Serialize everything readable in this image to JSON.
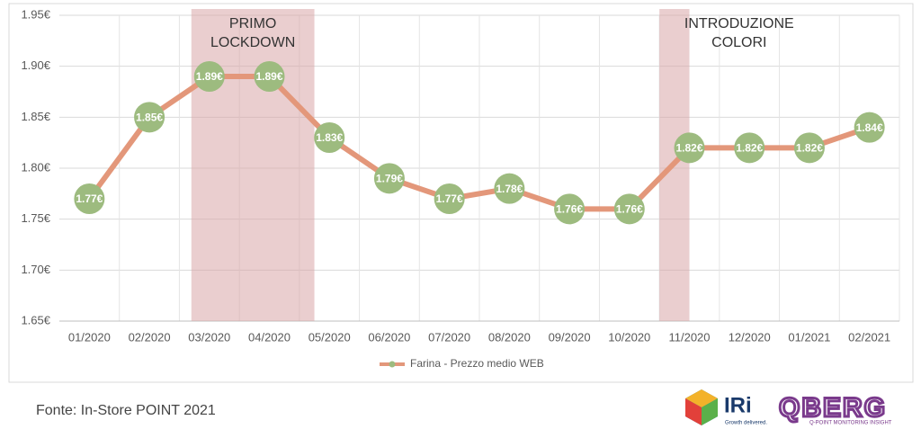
{
  "chart_data": {
    "type": "line",
    "categories": [
      "01/2020",
      "02/2020",
      "03/2020",
      "04/2020",
      "05/2020",
      "06/2020",
      "07/2020",
      "08/2020",
      "09/2020",
      "10/2020",
      "11/2020",
      "12/2020",
      "01/2021",
      "02/2021"
    ],
    "series": [
      {
        "name": "Farina - Prezzo medio WEB",
        "color": "#e3977a",
        "marker_color": "#9dbb7f",
        "values": [
          1.77,
          1.85,
          1.89,
          1.89,
          1.83,
          1.79,
          1.77,
          1.78,
          1.76,
          1.76,
          1.82,
          1.82,
          1.82,
          1.84
        ],
        "value_labels": [
          "1.77€",
          "1.85€",
          "1.89€",
          "1.89€",
          "1.83€",
          "1.79€",
          "1.77€",
          "1.78€",
          "1.76€",
          "1.76€",
          "1.82€",
          "1.82€",
          "1.82€",
          "1.84€"
        ]
      }
    ],
    "ylim": [
      1.65,
      1.95
    ],
    "yticks": [
      {
        "value": 1.65,
        "label": "1.65€"
      },
      {
        "value": 1.7,
        "label": "1.70€"
      },
      {
        "value": 1.75,
        "label": "1.75€"
      },
      {
        "value": 1.8,
        "label": "1.80€"
      },
      {
        "value": 1.85,
        "label": "1.85€"
      },
      {
        "value": 1.9,
        "label": "1.90€"
      },
      {
        "value": 1.95,
        "label": "1.95€"
      }
    ],
    "grid": true,
    "highlights": [
      {
        "label": "PRIMO LOCKDOWN",
        "start": "03/2020",
        "end": "04/2020"
      },
      {
        "label": "INTRODUZIONE COLORI",
        "start": "11/2020",
        "end": "11/2020"
      }
    ],
    "legend": "bottom"
  },
  "footer": {
    "source": "Fonte: In-Store POINT 2021",
    "logo_1": "IRi",
    "logo_1_tagline": "Growth delivered.",
    "logo_2": "QBERG",
    "logo_2_tagline": "Q-POINT MONITORING INSIGHT"
  }
}
